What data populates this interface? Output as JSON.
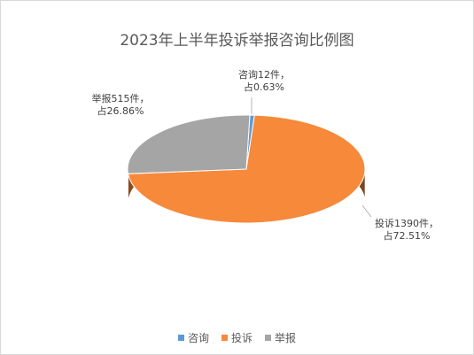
{
  "chart_data": {
    "type": "pie",
    "title": "2023年上半年投诉举报咨询比例图",
    "categories": [
      "咨询",
      "投诉",
      "举报"
    ],
    "values": [
      12,
      1390,
      515
    ],
    "percent_labels": [
      "0.63%",
      "72.51%",
      "26.86%"
    ],
    "data_labels": [
      [
        "咨询12件，",
        "占0.63%"
      ],
      [
        "投诉1390件，",
        "占72.51%"
      ],
      [
        "举报515件，",
        "占26.86%"
      ]
    ],
    "colors": [
      "#5b9bd5",
      "#f7893b",
      "#a5a5a5"
    ],
    "legend_position": "bottom"
  }
}
